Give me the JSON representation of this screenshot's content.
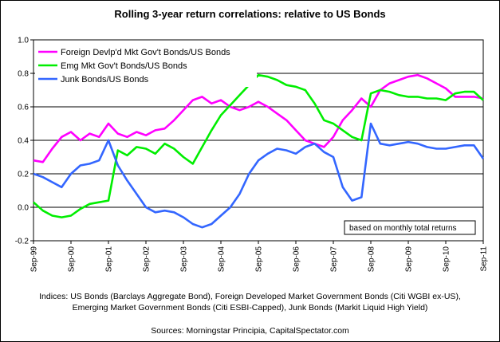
{
  "chart_data": {
    "type": "line",
    "title": "Rolling 3-year return correlations: relative to US Bonds",
    "ylim": [
      -0.2,
      1.0
    ],
    "yticks": [
      "1.0",
      "0.8",
      "0.6",
      "0.4",
      "0.2",
      "0.0",
      "-0.2"
    ],
    "ytick_values": [
      1.0,
      0.8,
      0.6,
      0.4,
      0.2,
      0.0,
      -0.2
    ],
    "xlim": [
      1999.67,
      2011.67
    ],
    "xtick_labels": [
      "Sep-99",
      "Sep-00",
      "Sep-01",
      "Sep-02",
      "Sep-03",
      "Sep-04",
      "Sep-05",
      "Sep-06",
      "Sep-07",
      "Sep-08",
      "Sep-09",
      "Sep-10",
      "Sep-11"
    ],
    "xtick_values": [
      1999.67,
      2000.67,
      2001.67,
      2002.67,
      2003.67,
      2004.67,
      2005.67,
      2006.67,
      2007.67,
      2008.67,
      2009.67,
      2010.67,
      2011.67
    ],
    "grid": true,
    "legend_position": "top-left",
    "note": "based on monthly total returns",
    "series": [
      {
        "name": "Foreign Devlp'd Mkt Gov't Bonds/US Bonds",
        "color": "#ff00ff",
        "x": [
          1999.67,
          1999.92,
          2000.17,
          2000.42,
          2000.67,
          2000.92,
          2001.17,
          2001.42,
          2001.67,
          2001.92,
          2002.17,
          2002.42,
          2002.67,
          2002.92,
          2003.17,
          2003.42,
          2003.67,
          2003.92,
          2004.17,
          2004.42,
          2004.67,
          2004.92,
          2005.17,
          2005.42,
          2005.67,
          2005.92,
          2006.17,
          2006.42,
          2006.67,
          2006.92,
          2007.17,
          2007.42,
          2007.67,
          2007.92,
          2008.17,
          2008.42,
          2008.67,
          2008.92,
          2009.17,
          2009.42,
          2009.67,
          2009.92,
          2010.17,
          2010.42,
          2010.67,
          2010.92,
          2011.17,
          2011.42,
          2011.67
        ],
        "values": [
          0.28,
          0.27,
          0.35,
          0.42,
          0.45,
          0.4,
          0.44,
          0.42,
          0.5,
          0.44,
          0.42,
          0.45,
          0.43,
          0.46,
          0.47,
          0.52,
          0.58,
          0.64,
          0.66,
          0.62,
          0.64,
          0.6,
          0.58,
          0.6,
          0.63,
          0.6,
          0.56,
          0.52,
          0.46,
          0.4,
          0.38,
          0.36,
          0.42,
          0.52,
          0.58,
          0.65,
          0.6,
          0.7,
          0.74,
          0.76,
          0.78,
          0.79,
          0.77,
          0.74,
          0.71,
          0.66,
          0.66,
          0.66,
          0.65
        ]
      },
      {
        "name": "Emg Mkt Gov't Bonds/US Bonds",
        "color": "#00ee00",
        "x": [
          1999.67,
          1999.92,
          2000.17,
          2000.42,
          2000.67,
          2000.92,
          2001.17,
          2001.42,
          2001.67,
          2001.92,
          2002.17,
          2002.42,
          2002.67,
          2002.92,
          2003.17,
          2003.42,
          2003.67,
          2003.92,
          2004.17,
          2004.42,
          2004.67,
          2004.92,
          2005.17,
          2005.42,
          2005.67,
          2005.92,
          2006.17,
          2006.42,
          2006.67,
          2006.92,
          2007.17,
          2007.42,
          2007.67,
          2007.92,
          2008.17,
          2008.42,
          2008.67,
          2008.92,
          2009.17,
          2009.42,
          2009.67,
          2009.92,
          2010.17,
          2010.42,
          2010.67,
          2010.92,
          2011.17,
          2011.42,
          2011.67
        ],
        "values": [
          0.03,
          -0.02,
          -0.05,
          -0.06,
          -0.05,
          -0.01,
          0.02,
          0.03,
          0.04,
          0.34,
          0.31,
          0.36,
          0.35,
          0.32,
          0.38,
          0.35,
          0.3,
          0.26,
          0.36,
          0.46,
          0.55,
          0.61,
          0.67,
          0.73,
          0.79,
          0.78,
          0.76,
          0.73,
          0.72,
          0.7,
          0.62,
          0.52,
          0.5,
          0.46,
          0.42,
          0.4,
          0.68,
          0.7,
          0.69,
          0.67,
          0.66,
          0.66,
          0.65,
          0.65,
          0.64,
          0.68,
          0.69,
          0.69,
          0.64
        ]
      },
      {
        "name": "Junk Bonds/US Bonds",
        "color": "#3366ff",
        "x": [
          1999.67,
          1999.92,
          2000.17,
          2000.42,
          2000.67,
          2000.92,
          2001.17,
          2001.42,
          2001.67,
          2001.92,
          2002.17,
          2002.42,
          2002.67,
          2002.92,
          2003.17,
          2003.42,
          2003.67,
          2003.92,
          2004.17,
          2004.42,
          2004.67,
          2004.92,
          2005.17,
          2005.42,
          2005.67,
          2005.92,
          2006.17,
          2006.42,
          2006.67,
          2006.92,
          2007.17,
          2007.42,
          2007.67,
          2007.92,
          2008.17,
          2008.42,
          2008.67,
          2008.92,
          2009.17,
          2009.42,
          2009.67,
          2009.92,
          2010.17,
          2010.42,
          2010.67,
          2010.92,
          2011.17,
          2011.42,
          2011.67
        ],
        "values": [
          0.2,
          0.18,
          0.15,
          0.12,
          0.2,
          0.25,
          0.26,
          0.28,
          0.4,
          0.25,
          0.16,
          0.08,
          0.0,
          -0.03,
          -0.02,
          -0.03,
          -0.06,
          -0.1,
          -0.12,
          -0.1,
          -0.05,
          0.0,
          0.08,
          0.2,
          0.28,
          0.32,
          0.35,
          0.34,
          0.32,
          0.36,
          0.38,
          0.33,
          0.3,
          0.12,
          0.04,
          0.06,
          0.5,
          0.38,
          0.37,
          0.38,
          0.39,
          0.38,
          0.36,
          0.35,
          0.35,
          0.36,
          0.37,
          0.37,
          0.29
        ]
      }
    ]
  },
  "footer": {
    "line1": "Indices: US Bonds (Barclays Aggregate Bond), Foreign Developed Market Government Bonds (Citi WGBI ex-US),",
    "line2": "Emerging Market Government Bonds (Citi ESBI-Capped), Junk Bonds (Markit Liquid High Yield)",
    "line3": "Sources: Morningstar Principia, CapitalSpectator.com"
  }
}
